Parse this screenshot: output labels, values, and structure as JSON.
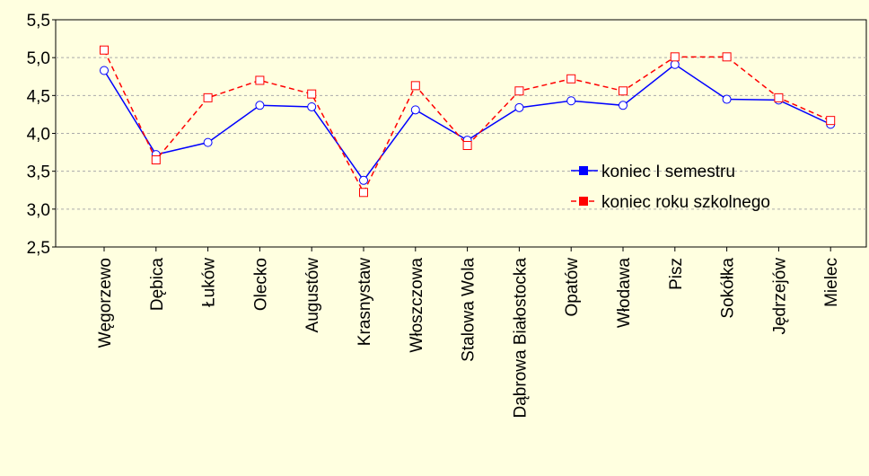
{
  "chart_data": {
    "type": "line",
    "categories": [
      "Węgorzewo",
      "Dębica",
      "Łuków",
      "Olecko",
      "Augustów",
      "Krasnystaw",
      "Włoszczowa",
      "Stalowa Wola",
      "Dąbrowa Białostocka",
      "Opatów",
      "Włodawa",
      "Pisz",
      "Sokółka",
      "Jędrzejów",
      "Mielec"
    ],
    "series": [
      {
        "name": "koniec I semestru",
        "color": "#0000ff",
        "values": [
          4.83,
          3.72,
          3.88,
          4.37,
          4.35,
          3.38,
          4.31,
          3.91,
          4.34,
          4.43,
          4.37,
          4.91,
          4.45,
          4.44,
          4.12
        ]
      },
      {
        "name": "koniec roku szkolnego",
        "color": "#ff0000",
        "values": [
          5.1,
          3.65,
          4.47,
          4.7,
          4.52,
          3.22,
          4.63,
          3.84,
          4.56,
          4.72,
          4.56,
          5.01,
          5.01,
          4.47,
          4.17
        ]
      }
    ],
    "ylim": [
      2.5,
      5.5
    ],
    "yticks": [
      {
        "value": 2.5,
        "label": "2,5"
      },
      {
        "value": 3,
        "label": "3,0"
      },
      {
        "value": 3.5,
        "label": "3,5"
      },
      {
        "value": 4,
        "label": "4,0"
      },
      {
        "value": 4.5,
        "label": "4,5"
      },
      {
        "value": 5,
        "label": "5,0"
      },
      {
        "value": 5.5,
        "label": "5,5"
      }
    ],
    "grid": true
  }
}
